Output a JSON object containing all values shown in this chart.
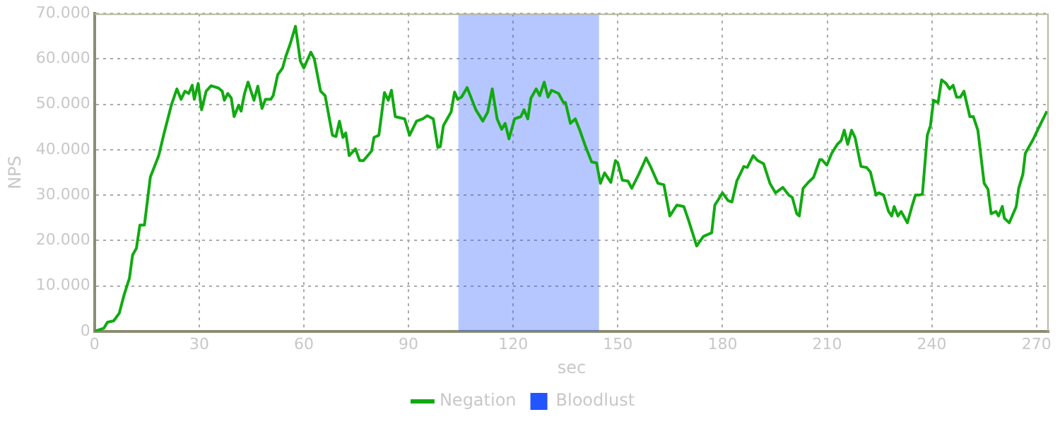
{
  "chart_data": {
    "type": "line",
    "xlabel": "sec",
    "ylabel": "NPS",
    "xlim": [
      0,
      273.5
    ],
    "xticks": [
      0,
      30,
      60,
      90,
      120,
      150,
      180,
      210,
      240,
      270
    ],
    "ylim": [
      0,
      70000
    ],
    "yticks": [
      {
        "value": 0,
        "label": "0"
      },
      {
        "value": 10000,
        "label": "10.000"
      },
      {
        "value": 20000,
        "label": "20.000"
      },
      {
        "value": 30000,
        "label": "30.000"
      },
      {
        "value": 40000,
        "label": "40.000"
      },
      {
        "value": 50000,
        "label": "50.000"
      },
      {
        "value": 60000,
        "label": "60.000"
      },
      {
        "value": 70000,
        "label": "70.000"
      }
    ],
    "grid": true,
    "legend": "bottom",
    "marker": "none",
    "line_style": "solid",
    "bands": [
      {
        "axis": "x",
        "from": 104.3,
        "to": 144.6,
        "label": "Bloodlust",
        "color": "#2255ff"
      }
    ],
    "series": [
      {
        "name": "Negation",
        "color": "#11aa11",
        "x": [
          0,
          2.7,
          3.7,
          5.5,
          7.1,
          8.5,
          10,
          10.9,
          12,
          13,
          14.3,
          16,
          18.4,
          19.8,
          22,
          23.6,
          24.8,
          25.9,
          27,
          28,
          28.6,
          29.7,
          30.7,
          32,
          33.4,
          35.5,
          36.6,
          37.2,
          38.2,
          39.2,
          40,
          41.3,
          42,
          43,
          44,
          45.7,
          46.8,
          48,
          49,
          50.5,
          51.2,
          52.5,
          53.9,
          54.8,
          56,
          57.6,
          59,
          60,
          62,
          63,
          64.8,
          66.1,
          68.2,
          69.2,
          70.2,
          71.2,
          72,
          73,
          74.8,
          76,
          77.1,
          79.4,
          80.1,
          81.5,
          83.1,
          84.2,
          85.1,
          86.2,
          88.9,
          90.3,
          92.3,
          94.1,
          95.4,
          97.1,
          98.4,
          99.1,
          100,
          102.2,
          103.2,
          104.1,
          105.2,
          106.8,
          109.3,
          111.3,
          112.7,
          114,
          115.4,
          116.7,
          117.7,
          118.8,
          120.4,
          122.2,
          123.1,
          124.2,
          125.1,
          126.6,
          127.6,
          128.9,
          130,
          131,
          133,
          134.4,
          135,
          136.4,
          137.8,
          139.1,
          140.5,
          142.5,
          143.9,
          145,
          146.2,
          148,
          149.3,
          150,
          151.3,
          152.9,
          154,
          156,
          158.1,
          159.5,
          161.5,
          163.2,
          164.9,
          166.9,
          168.9,
          170.3,
          172.6,
          174.5,
          176.9,
          177.8,
          180,
          181.6,
          182.7,
          184.1,
          186.1,
          187.1,
          188.8,
          190.1,
          191.8,
          193.6,
          195.2,
          197.3,
          199,
          200,
          201.3,
          202,
          203.1,
          204.7,
          206.1,
          207.9,
          208.5,
          209.9,
          211.3,
          212.9,
          214,
          214.9,
          215.9,
          217,
          218,
          219.7,
          221.3,
          222.4,
          224,
          224.8,
          226.2,
          227.6,
          228.5,
          229.2,
          230.3,
          231.2,
          233,
          234.3,
          235.3,
          236.3,
          237.3,
          238.7,
          239.6,
          240.5,
          241.8,
          242.8,
          244.1,
          245.1,
          246.1,
          247.1,
          248.2,
          249.2,
          250.9,
          251.9,
          253.2,
          255,
          256.1,
          257,
          258.4,
          259.1,
          260.2,
          260.8,
          262.2,
          264.2,
          264.9,
          266.1,
          266.8,
          269,
          270.6,
          273
        ],
        "values": [
          0,
          700,
          2000,
          2300,
          4000,
          8100,
          11700,
          16800,
          18300,
          23400,
          23400,
          34000,
          38700,
          43200,
          49800,
          53400,
          51100,
          52900,
          52400,
          54200,
          51100,
          54600,
          48800,
          52900,
          54100,
          53600,
          52900,
          50900,
          52400,
          51400,
          47300,
          49800,
          48500,
          52400,
          54900,
          50900,
          54000,
          49100,
          51100,
          51100,
          51900,
          56500,
          58000,
          60500,
          63100,
          67200,
          59500,
          58000,
          61500,
          60000,
          52900,
          51900,
          43200,
          42900,
          46300,
          42700,
          43700,
          38700,
          40200,
          37600,
          37600,
          39700,
          42700,
          43200,
          52600,
          50900,
          53100,
          47300,
          46800,
          43200,
          46300,
          46800,
          47500,
          46800,
          40500,
          40700,
          45300,
          48300,
          52700,
          51100,
          51600,
          53700,
          48800,
          46300,
          48300,
          53400,
          46800,
          44500,
          45800,
          42400,
          46800,
          47300,
          48800,
          46800,
          51400,
          53400,
          51900,
          54900,
          51600,
          53100,
          52400,
          50400,
          50400,
          45800,
          46800,
          44300,
          41200,
          37300,
          37100,
          32600,
          34900,
          32800,
          37600,
          37100,
          33300,
          33100,
          31500,
          34600,
          38200,
          36100,
          32600,
          32300,
          25400,
          27800,
          27500,
          24400,
          18800,
          20900,
          21700,
          27800,
          30500,
          28800,
          28500,
          33100,
          36300,
          36100,
          38700,
          37600,
          36900,
          32600,
          30500,
          31700,
          30000,
          29500,
          25900,
          25400,
          31500,
          32900,
          33900,
          37800,
          37800,
          36600,
          39200,
          41200,
          42000,
          44300,
          41200,
          44300,
          42700,
          36300,
          36100,
          35100,
          30000,
          30500,
          30000,
          26400,
          25400,
          27500,
          25400,
          26400,
          23900,
          27500,
          30000,
          30000,
          30200,
          43200,
          45300,
          50900,
          50400,
          55400,
          54600,
          53400,
          54200,
          51600,
          51600,
          52900,
          47300,
          47300,
          44300,
          32600,
          31300,
          25900,
          26400,
          25400,
          27500,
          24900,
          23900,
          27500,
          31500,
          34600,
          39200,
          42200,
          44800,
          48500
        ]
      }
    ]
  }
}
